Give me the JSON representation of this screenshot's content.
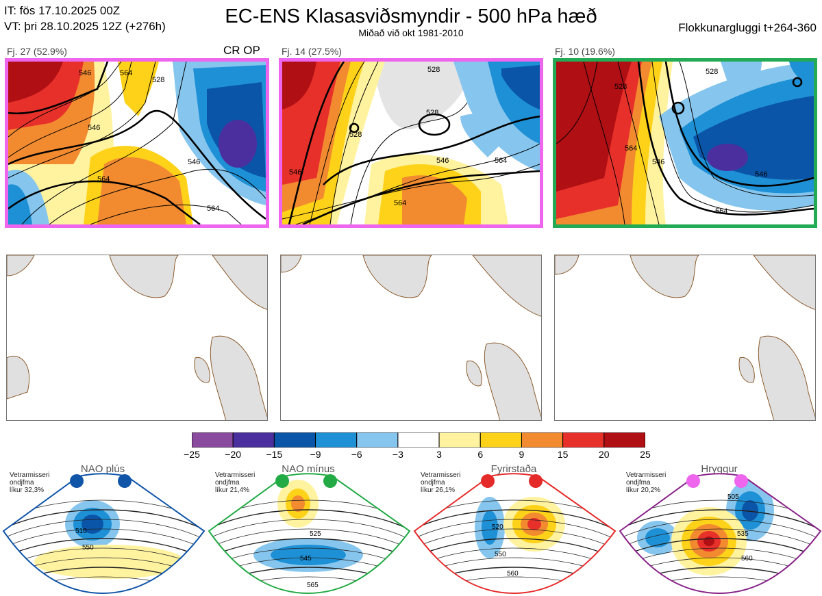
{
  "header": {
    "init_line": "IT: fös 17.10.2025 00Z",
    "valid_line": "VT: þri 28.10.2025 12Z  (+276h)",
    "title": "EC-ENS Klasasviðsmyndir - 500 hPa hæð",
    "subtitle": "Miðað við okt 1981-2010",
    "window": "Flokkunargluggi t+264-360"
  },
  "clusters": [
    {
      "label": "Fj. 27 (52.9%)",
      "tag": "CR OP",
      "border_color": "#ee66ee",
      "contours": [
        "546",
        "564",
        "546",
        "528",
        "546",
        "564"
      ]
    },
    {
      "label": "Fj. 14 (27.5%)",
      "tag": "",
      "border_color": "#ee66ee",
      "contours": [
        "528",
        "528",
        "528",
        "546",
        "564",
        "564",
        "546"
      ]
    },
    {
      "label": "Fj. 10 (19.6%)",
      "tag": "",
      "border_color": "#22aa55",
      "contours": [
        "528",
        "546",
        "564",
        "528",
        "546",
        "564"
      ]
    }
  ],
  "colorbar": {
    "ticks": [
      "−25",
      "−20",
      "−15",
      "−9",
      "−6",
      "−3",
      "3",
      "6",
      "9",
      "15",
      "20",
      "25"
    ],
    "colors": [
      "#8a4a9e",
      "#4b2f9e",
      "#0b55a8",
      "#1e90d6",
      "#86c6ee",
      "#ffffff",
      "#fff3a0",
      "#ffd21a",
      "#f28a30",
      "#e8302a",
      "#b00f14"
    ]
  },
  "regimes": [
    {
      "name": "NAO plús",
      "note": [
        "Vetrarmisseri",
        "ondjfma",
        "líkur 32,3%"
      ],
      "color": "#1055a8",
      "dot": "#1055a8",
      "contours": [
        "510",
        "550"
      ]
    },
    {
      "name": "NAO mínus",
      "note": [
        "Vetrarmisseri",
        "ondjfma",
        "líkur 21,4%"
      ],
      "color": "#22aa44",
      "dot": "#22aa44",
      "contours": [
        "525",
        "545",
        "565"
      ]
    },
    {
      "name": "Fyrirstaða",
      "note": [
        "Vetrarmisseri",
        "ondjfma",
        "líkur 26,1%"
      ],
      "color": "#e52a2a",
      "dot": "#e52a2a",
      "contours": [
        "520",
        "550",
        "560"
      ]
    },
    {
      "name": "Hryggur",
      "note": [
        "Vetrarmisseri",
        "ondjfma",
        "líkur 20,2%"
      ],
      "color": "#882288",
      "dot": "#ee66ee",
      "contours": [
        "505",
        "535",
        "560"
      ]
    }
  ]
}
